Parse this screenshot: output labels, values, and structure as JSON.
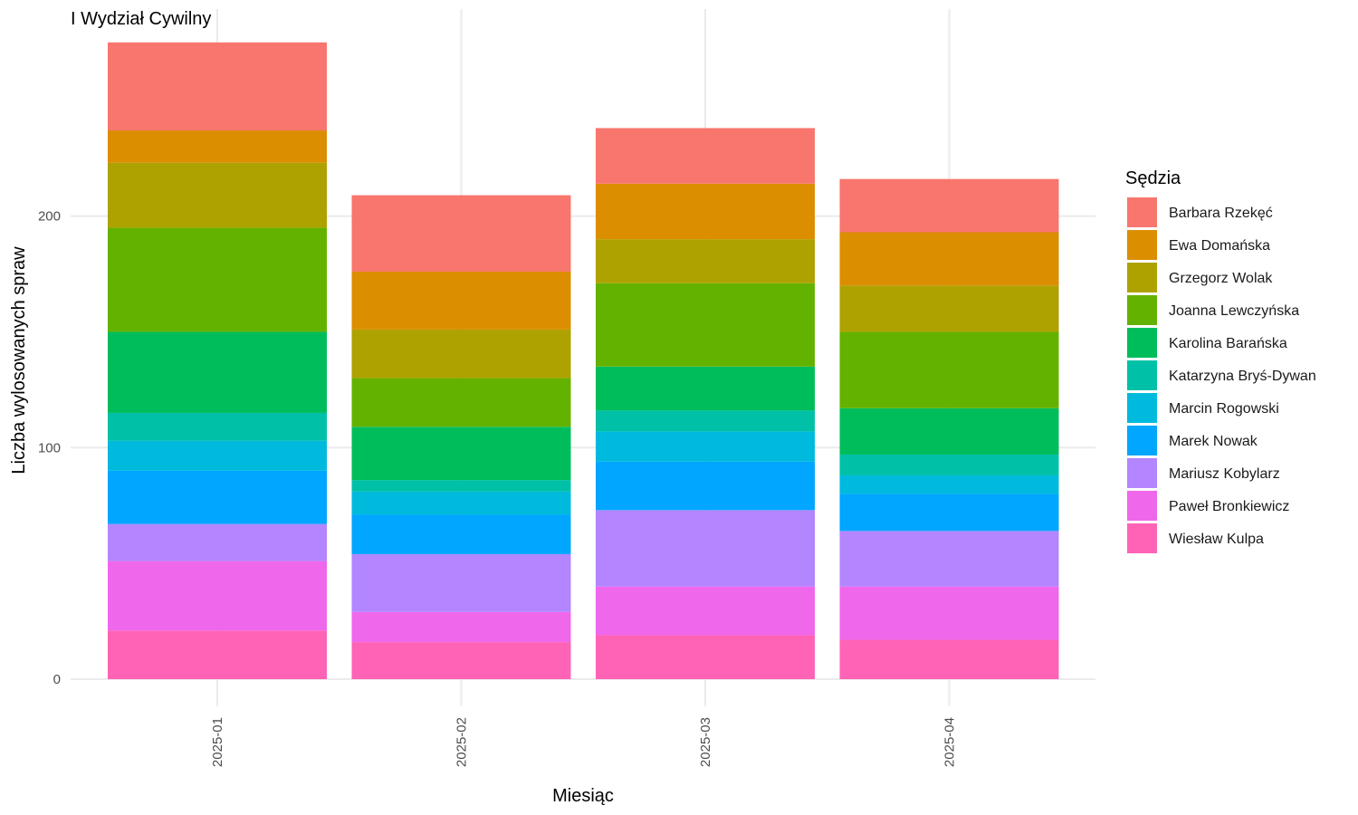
{
  "chart_data": {
    "type": "bar",
    "stacked": true,
    "title": "I Wydział Cywilny",
    "xlabel": "Miesiąc",
    "ylabel": "Liczba wylosowanych spraw",
    "ylim": [
      0,
      275
    ],
    "yticks": [
      0,
      100,
      200
    ],
    "grid": true,
    "legend_title": "Sędzia",
    "legend_position": "right",
    "categories": [
      "2025-01",
      "2025-02",
      "2025-03",
      "2025-04"
    ],
    "series": [
      {
        "name": "Barbara Rzekęć",
        "color": "#F8766D",
        "values": [
          38,
          33,
          24,
          23
        ]
      },
      {
        "name": "Ewa Domańska",
        "color": "#DB8E00",
        "values": [
          14,
          25,
          24,
          23
        ]
      },
      {
        "name": "Grzegorz Wolak",
        "color": "#AEA200",
        "values": [
          28,
          21,
          19,
          20
        ]
      },
      {
        "name": "Joanna Lewczyńska",
        "color": "#64B200",
        "values": [
          45,
          21,
          36,
          33
        ]
      },
      {
        "name": "Karolina Barańska",
        "color": "#00BD5C",
        "values": [
          35,
          23,
          19,
          20
        ]
      },
      {
        "name": "Katarzyna Bryś-Dywan",
        "color": "#00C1A7",
        "values": [
          12,
          5,
          9,
          9
        ]
      },
      {
        "name": "Marcin Rogowski",
        "color": "#00BADE",
        "values": [
          13,
          10,
          13,
          8
        ]
      },
      {
        "name": "Marek Nowak",
        "color": "#00A6FF",
        "values": [
          23,
          17,
          21,
          16
        ]
      },
      {
        "name": "Mariusz Kobylarz",
        "color": "#B385FF",
        "values": [
          16,
          25,
          33,
          24
        ]
      },
      {
        "name": "Paweł Bronkiewicz",
        "color": "#EF67EB",
        "values": [
          30,
          13,
          21,
          23
        ]
      },
      {
        "name": "Wiesław Kulpa",
        "color": "#FF63B6",
        "values": [
          21,
          16,
          19,
          17
        ]
      }
    ]
  }
}
